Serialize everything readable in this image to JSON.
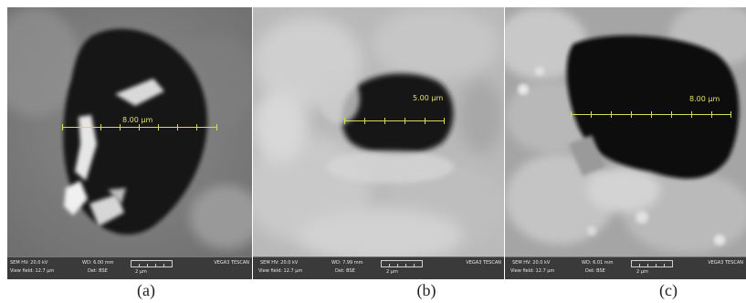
{
  "panels": [
    {
      "caption": "(a)",
      "measurement": "8.00 µm",
      "footer": {
        "hv": "SEM HV: 20.0 kV",
        "wd": "WD: 6.00 mm",
        "view_field": "View field: 12.7 µm",
        "det": "Det: BSE",
        "scale": "2 µm",
        "brand": "VEGA3 TESCAN"
      }
    },
    {
      "caption": "(b)",
      "measurement": "5.00 µm",
      "footer": {
        "hv": "SEM HV: 20.0 kV",
        "wd": "WD: 7.99 mm",
        "view_field": "View field: 12.7 µm",
        "det": "Det: BSE",
        "scale": "2 µm",
        "brand": "VEGA3 TESCAN"
      }
    },
    {
      "caption": "(c)",
      "measurement": "8.00 µm",
      "footer": {
        "hv": "SEM HV: 20.0 kV",
        "wd": "WD: 6.01 mm",
        "view_field": "View field: 12.7 µm",
        "det": "Det: BSE",
        "scale": "2 µm",
        "brand": "VEGA3 TESCAN"
      }
    }
  ],
  "colors": {
    "measurement_line": "#d8d85a",
    "footer_bg": "#3a3a3a"
  }
}
